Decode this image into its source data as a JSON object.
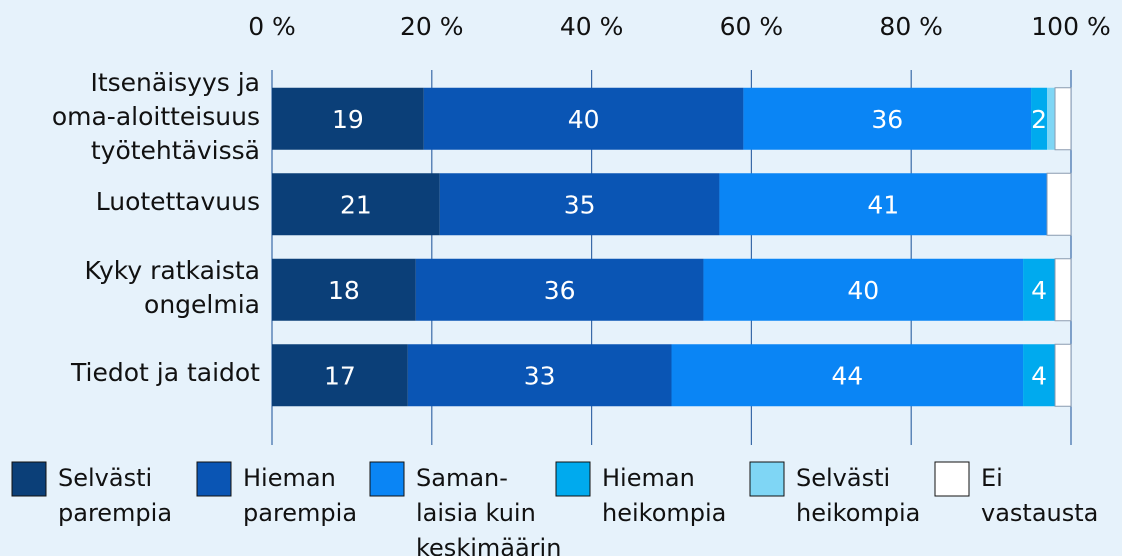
{
  "chart_data": {
    "type": "stacked_barh",
    "categories": [
      "Itsenäisyys ja\noma-aloitteisuus\ntyötehtävissä",
      "Luotettavuus",
      "Kyky ratkaista\nongelmia",
      "Tiedot ja taidot"
    ],
    "series": [
      {
        "name": "Selvästi\nparempia",
        "color": "#0b3f78",
        "values": [
          19,
          21,
          18,
          17
        ],
        "show_labels": true
      },
      {
        "name": "Hieman\nparempia",
        "color": "#0a55b4",
        "values": [
          40,
          35,
          36,
          33
        ],
        "show_labels": true
      },
      {
        "name": "Saman-\nlaisia kuin\nkeskimäärin",
        "color": "#0a85f5",
        "values": [
          36,
          41,
          40,
          44
        ],
        "show_labels": true
      },
      {
        "name": "Hieman\nheikompia",
        "color": "#00aaee",
        "values": [
          2,
          0,
          4,
          4
        ],
        "show_labels": true
      },
      {
        "name": "Selvästi\nheikompia",
        "color": "#7fd6f5",
        "values": [
          1,
          0,
          0,
          0
        ],
        "show_labels": false
      },
      {
        "name": "Ei\nvastausta",
        "color": "#ffffff",
        "values": [
          2,
          3,
          2,
          2
        ],
        "show_labels": false
      }
    ],
    "xlim": [
      0,
      100
    ],
    "xticks": [
      {
        "value": 0,
        "label": "0 %"
      },
      {
        "value": 20,
        "label": "20 %"
      },
      {
        "value": 40,
        "label": "40 %"
      },
      {
        "value": 60,
        "label": "60 %"
      },
      {
        "value": 80,
        "label": "80 %"
      },
      {
        "value": 100,
        "label": "100 %"
      }
    ],
    "grid": true
  }
}
